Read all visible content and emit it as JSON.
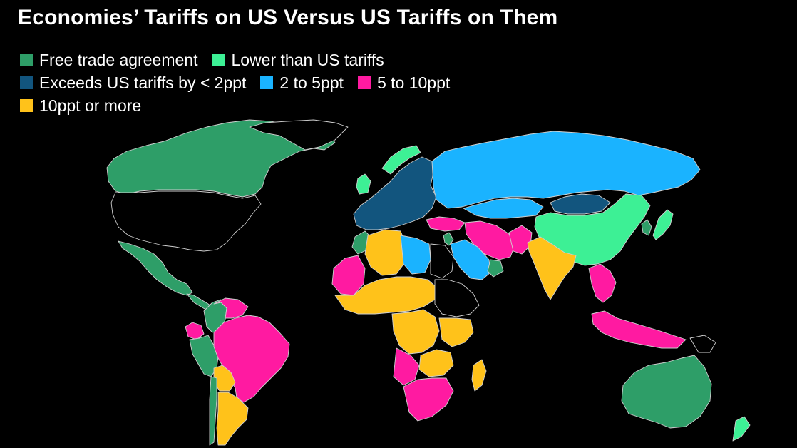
{
  "title": "Economies’ Tariffs on US Versus US Tariffs on Them",
  "legend": [
    {
      "label": "Free trade agreement",
      "color": "#2e9e68"
    },
    {
      "label": "Lower than US tariffs",
      "color": "#3df095"
    },
    {
      "label": "Exceeds US tariffs by < 2ppt",
      "color": "#12557e"
    },
    {
      "label": "2 to 5ppt",
      "color": "#1ab3ff"
    },
    {
      "label": "5 to 10ppt",
      "color": "#ff1aa1"
    },
    {
      "label": "10ppt or more",
      "color": "#ffc21a"
    }
  ],
  "no_data_color": "#000000",
  "regions": {
    "Canada": "Free trade agreement",
    "Mexico": "Free trade agreement",
    "Central America": "Free trade agreement",
    "Colombia": "Free trade agreement",
    "Peru": "Free trade agreement",
    "Chile": "Free trade agreement",
    "Australia": "Free trade agreement",
    "Korea": "Free trade agreement",
    "Israel": "Free trade agreement",
    "Jordan": "Free trade agreement",
    "Morocco": "Free trade agreement",
    "Oman": "Free trade agreement",
    "China": "Lower than US tariffs",
    "Japan": "Lower than US tariffs",
    "New Zealand": "Lower than US tariffs",
    "United Kingdom": "Lower than US tariffs",
    "Norway": "Lower than US tariffs",
    "European Union": "Exceeds US tariffs by < 2ppt",
    "Mongolia": "Exceeds US tariffs by < 2ppt",
    "Russia": "2 to 5ppt",
    "Kazakhstan": "2 to 5ppt",
    "Libya": "2 to 5ppt",
    "Saudi Arabia": "2 to 5ppt",
    "Brazil": "5 to 10ppt",
    "Venezuela": "5 to 10ppt",
    "Ecuador": "5 to 10ppt",
    "Iran": "5 to 10ppt",
    "Turkey": "5 to 10ppt",
    "Pakistan": "5 to 10ppt",
    "Mali": "5 to 10ppt",
    "Indonesia": "5 to 10ppt",
    "Vietnam": "5 to 10ppt",
    "Thailand": "5 to 10ppt",
    "Angola": "5 to 10ppt",
    "South Africa": "5 to 10ppt",
    "India": "10ppt or more",
    "Argentina": "10ppt or more",
    "Bolivia": "10ppt or more",
    "Algeria": "10ppt or more",
    "Niger": "10ppt or more",
    "Nigeria": "10ppt or more",
    "Congo": "10ppt or more",
    "Zambia": "10ppt or more",
    "Tanzania": "10ppt or more",
    "Madagascar": "10ppt or more",
    "Egypt": "no data",
    "United States": "no data"
  }
}
